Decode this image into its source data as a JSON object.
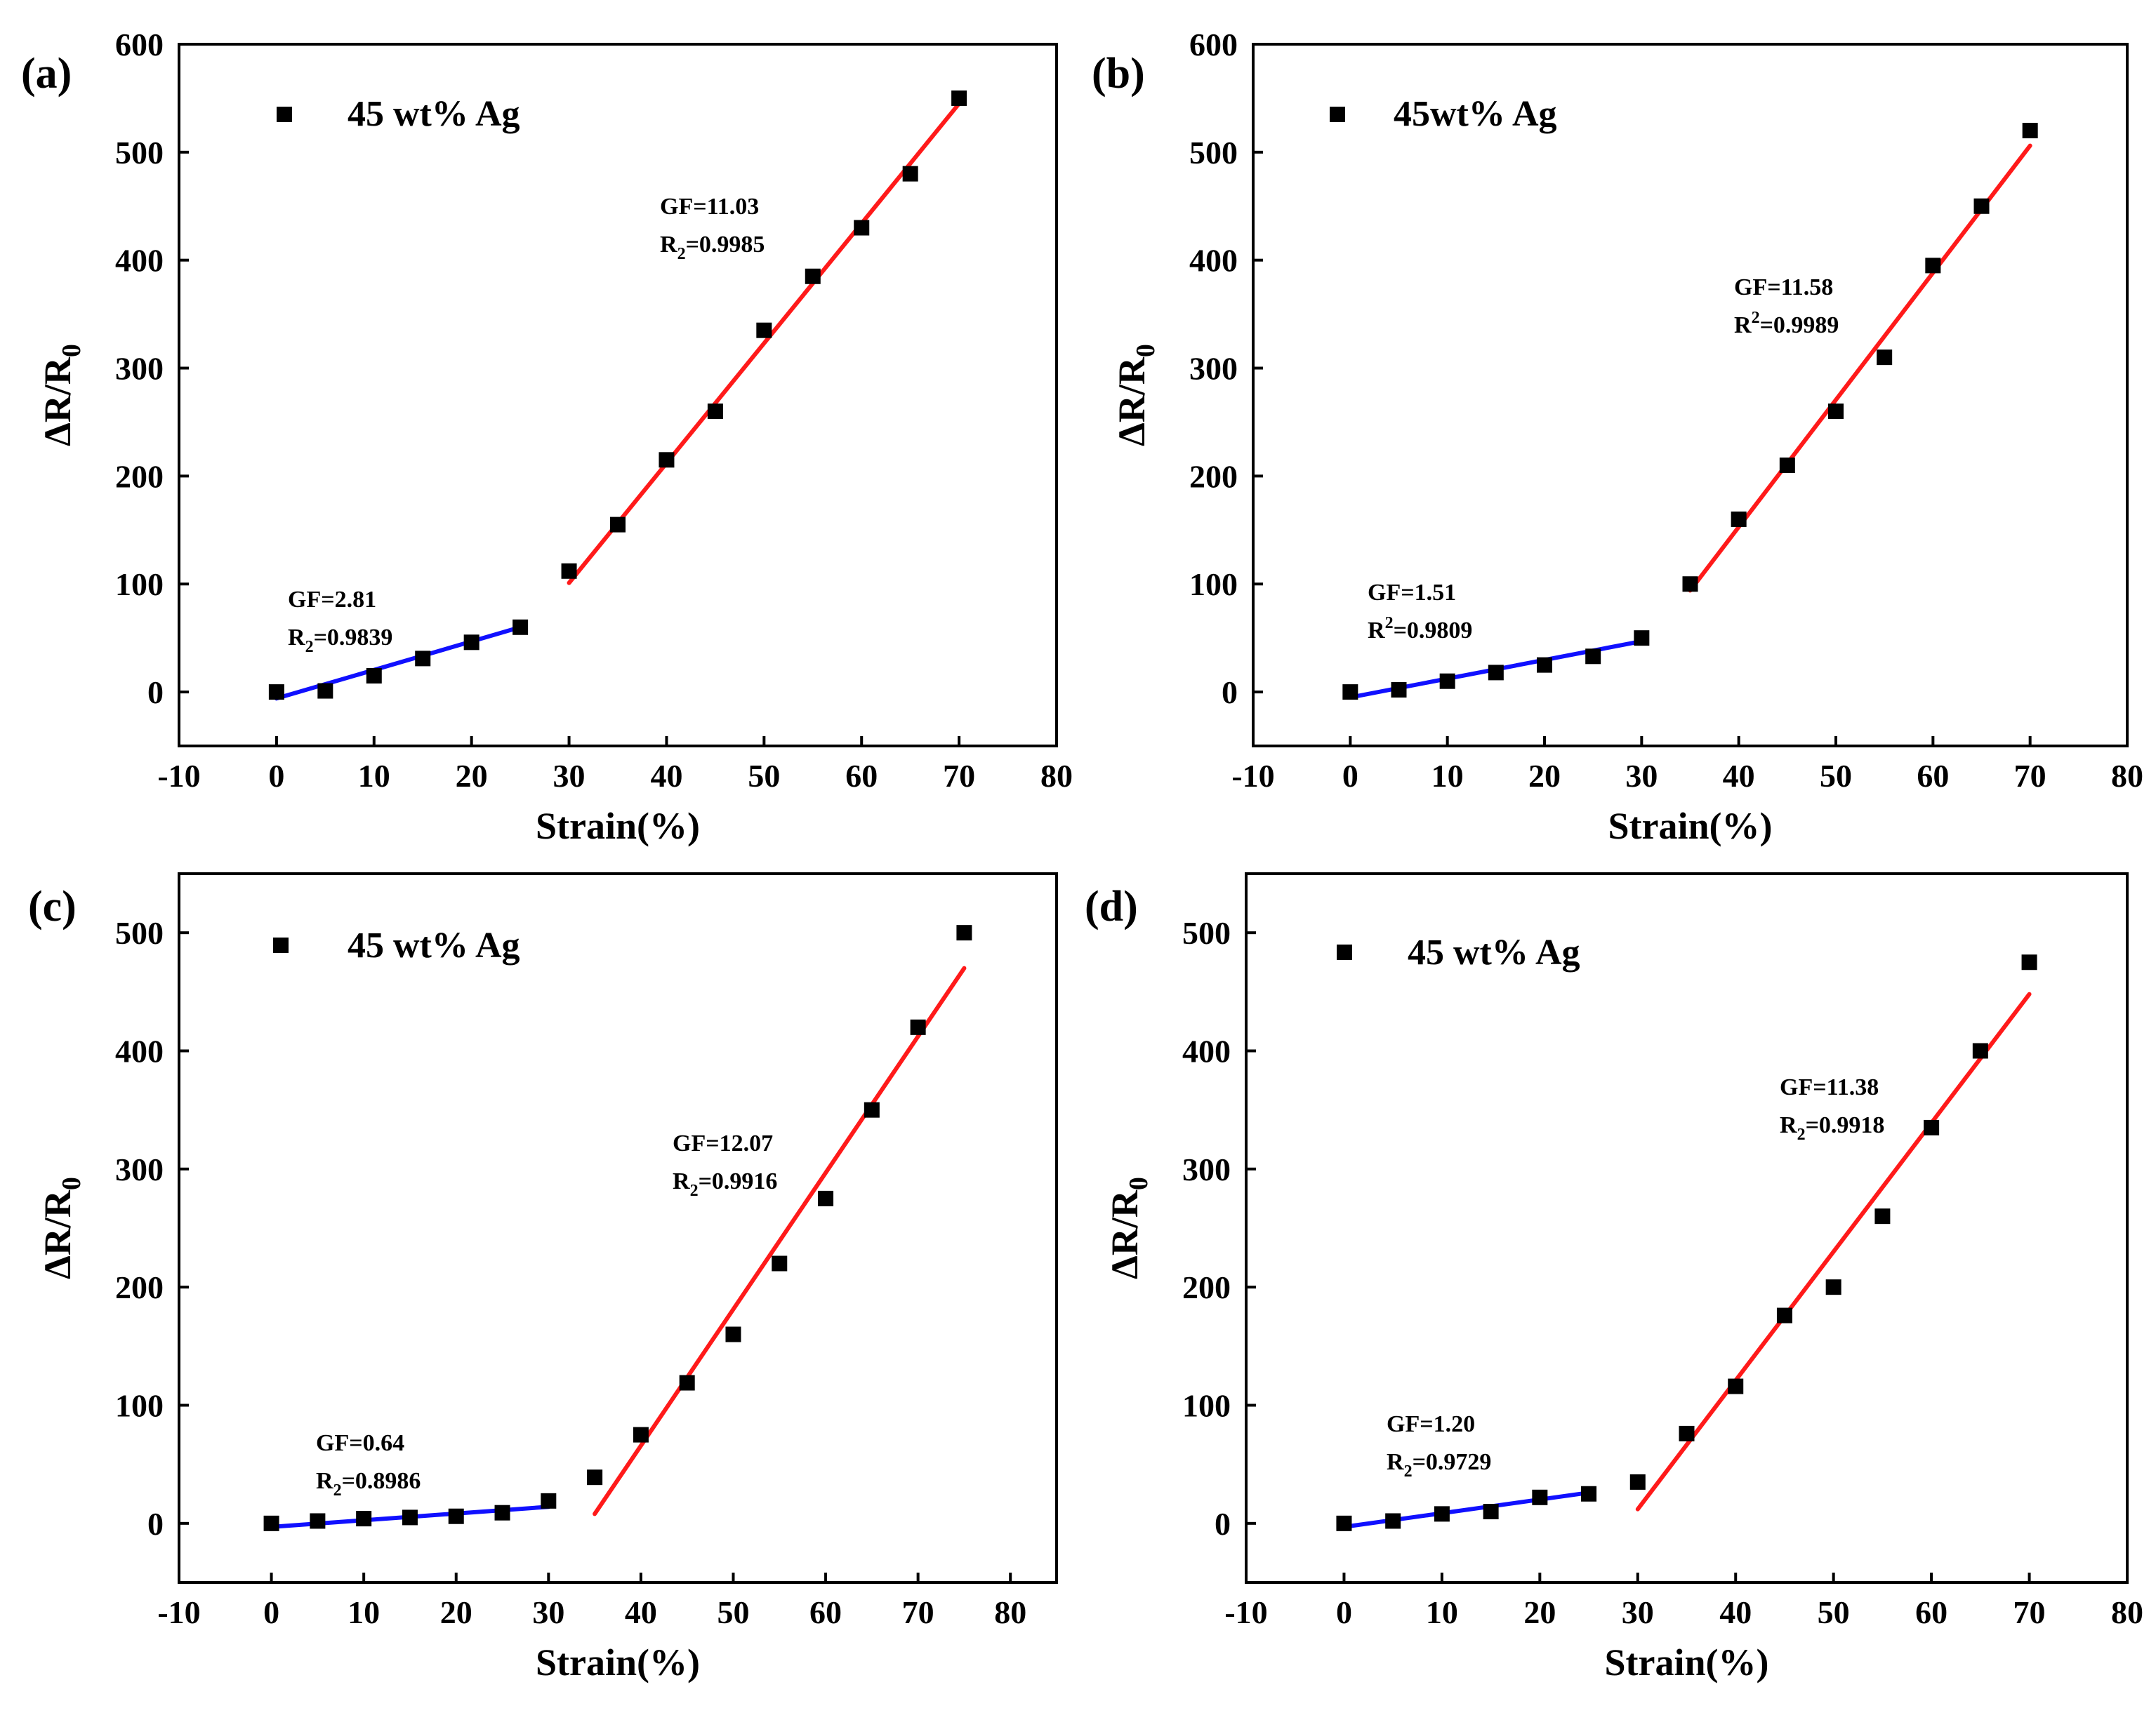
{
  "figure": {
    "panels": [
      "(a)",
      "(b)",
      "(c)",
      "(d)"
    ]
  },
  "chart_data": [
    {
      "type": "scatter",
      "panel": "(a)",
      "title": "",
      "xlabel": "Strain(%)",
      "ylabel": "ΔR/R0",
      "xlim": [
        -10,
        80
      ],
      "ylim": [
        -50,
        600
      ],
      "xticks": [
        -10,
        0,
        10,
        20,
        30,
        40,
        50,
        60,
        70,
        80
      ],
      "yticks": [
        0,
        100,
        200,
        300,
        400,
        500,
        600
      ],
      "legend": "45 wt% Ag",
      "legend_position": "top-left",
      "series": [
        {
          "name": "45 wt% Ag",
          "x": [
            0,
            5,
            10,
            15,
            20,
            25,
            30,
            35,
            40,
            45,
            50,
            55,
            60,
            65,
            70
          ],
          "y": [
            0,
            1,
            15,
            31,
            46,
            60,
            112,
            155,
            215,
            260,
            335,
            385,
            430,
            480,
            550
          ]
        }
      ],
      "fits": [
        {
          "color": "#1010ff",
          "x": [
            0,
            25
          ],
          "y": [
            -6,
            60
          ],
          "gf": "GF=2.81",
          "r": "R",
          "r_sub": "2",
          "r_val": "=0.9839"
        },
        {
          "color": "#ff1a1a",
          "x": [
            30,
            70
          ],
          "y": [
            101,
            545
          ],
          "gf": "GF=11.03",
          "r": "R",
          "r_sub": "2",
          "r_val": "=0.9985"
        }
      ]
    },
    {
      "type": "scatter",
      "panel": "(b)",
      "title": "",
      "xlabel": "Strain(%)",
      "ylabel": "ΔR/R0",
      "xlim": [
        -10,
        80
      ],
      "ylim": [
        -50,
        600
      ],
      "xticks": [
        -10,
        0,
        10,
        20,
        30,
        40,
        50,
        60,
        70,
        80
      ],
      "yticks": [
        0,
        100,
        200,
        300,
        400,
        500,
        600
      ],
      "legend": "45wt% Ag",
      "legend_position": "top-left",
      "series": [
        {
          "name": "45wt% Ag",
          "x": [
            0,
            5,
            10,
            15,
            20,
            25,
            30,
            35,
            40,
            45,
            50,
            55,
            60,
            65,
            70
          ],
          "y": [
            0,
            2,
            10,
            18,
            25,
            33,
            50,
            100,
            160,
            210,
            260,
            310,
            395,
            450,
            520
          ]
        }
      ],
      "fits": [
        {
          "color": "#1010ff",
          "x": [
            0,
            30
          ],
          "y": [
            -5,
            47
          ],
          "gf": "GF=1.51",
          "r": "R",
          "r_sup": "2",
          "r_val": "=0.9809"
        },
        {
          "color": "#ff1a1a",
          "x": [
            35,
            70
          ],
          "y": [
            94,
            506
          ],
          "gf": "GF=11.58",
          "r": "R",
          "r_sup": "2",
          "r_val": "=0.9989"
        }
      ]
    },
    {
      "type": "scatter",
      "panel": "(c)",
      "title": "",
      "xlabel": "Strain(%)",
      "ylabel": "ΔR/R0",
      "xlim": [
        -10,
        85
      ],
      "ylim": [
        -50,
        550
      ],
      "xticks": [
        -10,
        0,
        10,
        20,
        30,
        40,
        50,
        60,
        70,
        80
      ],
      "yticks": [
        0,
        100,
        200,
        300,
        400,
        500
      ],
      "legend": "45 wt% Ag",
      "legend_position": "top-left",
      "series": [
        {
          "name": "45 wt% Ag",
          "x": [
            0,
            5,
            10,
            15,
            20,
            25,
            30,
            35,
            40,
            45,
            50,
            55,
            60,
            65,
            70,
            75
          ],
          "y": [
            0,
            2,
            4,
            5,
            6,
            9,
            19,
            39,
            75,
            119,
            160,
            220,
            275,
            350,
            420,
            500
          ]
        }
      ],
      "fits": [
        {
          "color": "#1010ff",
          "x": [
            0,
            30
          ],
          "y": [
            -3,
            14
          ],
          "gf": "GF=0.64",
          "r": "R",
          "r_sub": "2",
          "r_val": "=0.8986"
        },
        {
          "color": "#ff1a1a",
          "x": [
            35,
            75
          ],
          "y": [
            8,
            470
          ],
          "gf": "GF=12.07",
          "r": "R",
          "r_sub": "2",
          "r_val": "=0.9916"
        }
      ]
    },
    {
      "type": "scatter",
      "panel": "(d)",
      "title": "",
      "xlabel": "Strain(%)",
      "ylabel": "ΔR/R0",
      "xlim": [
        -10,
        80
      ],
      "ylim": [
        -50,
        550
      ],
      "xticks": [
        -10,
        0,
        10,
        20,
        30,
        40,
        50,
        60,
        70,
        80
      ],
      "yticks": [
        0,
        100,
        200,
        300,
        400,
        500
      ],
      "legend": "45 wt% Ag",
      "legend_position": "top-left",
      "series": [
        {
          "name": "45 wt% Ag",
          "x": [
            0,
            5,
            10,
            15,
            20,
            25,
            30,
            35,
            40,
            45,
            50,
            55,
            60,
            65,
            70
          ],
          "y": [
            0,
            2,
            8,
            10,
            22,
            25,
            35,
            76,
            116,
            176,
            200,
            260,
            335,
            400,
            475
          ]
        }
      ],
      "fits": [
        {
          "color": "#1010ff",
          "x": [
            0,
            25
          ],
          "y": [
            -3,
            26
          ],
          "gf": "GF=1.20",
          "r": "R",
          "r_sub": "2",
          "r_val": "=0.9729"
        },
        {
          "color": "#ff1a1a",
          "x": [
            30,
            70
          ],
          "y": [
            12,
            448
          ],
          "gf": "GF=11.38",
          "r": "R",
          "r_sub": "2",
          "r_val": "=0.9918"
        }
      ]
    }
  ]
}
